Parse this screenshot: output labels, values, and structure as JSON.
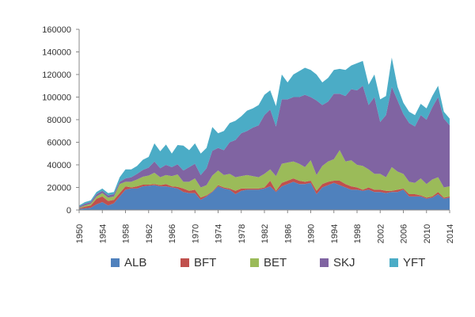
{
  "chart_data": {
    "type": "area",
    "stacked": true,
    "title": "",
    "xlabel": "",
    "ylabel": "",
    "x": [
      1950,
      1951,
      1952,
      1953,
      1954,
      1955,
      1956,
      1957,
      1958,
      1959,
      1960,
      1961,
      1962,
      1963,
      1964,
      1965,
      1966,
      1967,
      1968,
      1969,
      1970,
      1971,
      1972,
      1973,
      1974,
      1975,
      1976,
      1977,
      1978,
      1979,
      1980,
      1981,
      1982,
      1983,
      1984,
      1985,
      1986,
      1987,
      1988,
      1989,
      1990,
      1991,
      1992,
      1993,
      1994,
      1995,
      1996,
      1997,
      1998,
      1999,
      2000,
      2001,
      2002,
      2003,
      2004,
      2005,
      2006,
      2007,
      2008,
      2009,
      2010,
      2011,
      2012,
      2013,
      2014
    ],
    "x_tick_labels": [
      "1950",
      "1954",
      "1958",
      "1962",
      "1966",
      "1970",
      "1974",
      "1978",
      "1982",
      "1986",
      "1990",
      "1994",
      "1998",
      "2002",
      "2006",
      "2010",
      "2014"
    ],
    "ylim": [
      0,
      160000
    ],
    "y_ticks": [
      "0",
      "20000",
      "40000",
      "60000",
      "80000",
      "100000",
      "120000",
      "140000",
      "160000"
    ],
    "grid": false,
    "legend_position": "bottom",
    "series": [
      {
        "name": "ALB",
        "color": "#4F81BD",
        "values": [
          1000,
          1500,
          2000,
          5000,
          7000,
          4000,
          6000,
          12000,
          18000,
          19000,
          19000,
          21000,
          21500,
          22000,
          21000,
          21000,
          20000,
          19000,
          16000,
          15000,
          15000,
          9000,
          12000,
          16000,
          21000,
          19000,
          18000,
          14000,
          17000,
          18000,
          18000,
          18000,
          19000,
          21000,
          16000,
          21000,
          23000,
          25000,
          23000,
          23000,
          24000,
          14000,
          20000,
          22000,
          24000,
          22000,
          20000,
          18000,
          18000,
          17000,
          18000,
          16000,
          16000,
          15000,
          16000,
          16000,
          18000,
          12000,
          12000,
          12000,
          10000,
          11000,
          14000,
          10000,
          11000
        ]
      },
      {
        "name": "BFT",
        "color": "#C0504D",
        "values": [
          500,
          1500,
          2000,
          5000,
          5000,
          4000,
          3000,
          3000,
          3000,
          1000,
          2000,
          1500,
          1000,
          1000,
          1000,
          2000,
          1000,
          1500,
          3000,
          2000,
          3000,
          2000,
          1000,
          500,
          1000,
          1000,
          1000,
          3000,
          2000,
          1000,
          1000,
          1000,
          1000,
          5000,
          1000,
          3000,
          3000,
          3000,
          3000,
          2000,
          2000,
          3000,
          3000,
          3000,
          2000,
          4000,
          3000,
          3000,
          2000,
          1000,
          2000,
          2000,
          2000,
          2000,
          1000,
          2000,
          1000,
          2000,
          2000,
          1000,
          1000,
          1000,
          2000,
          1000,
          1000
        ]
      },
      {
        "name": "BET",
        "color": "#9BBB59",
        "values": [
          500,
          1000,
          1500,
          2000,
          3000,
          3000,
          3000,
          8000,
          4000,
          5000,
          6000,
          7000,
          8000,
          10000,
          7000,
          8000,
          9000,
          11000,
          6000,
          8000,
          10000,
          9000,
          9000,
          14000,
          13000,
          11000,
          13000,
          12000,
          11000,
          12000,
          11000,
          10000,
          12000,
          10000,
          13000,
          17000,
          16000,
          15000,
          15000,
          13000,
          18000,
          14000,
          16000,
          18000,
          19000,
          27000,
          20000,
          23000,
          20000,
          21000,
          16000,
          14000,
          14000,
          12000,
          21000,
          16000,
          13000,
          11000,
          10000,
          15000,
          12000,
          15000,
          13000,
          9000,
          9000
        ]
      },
      {
        "name": "SKJ",
        "color": "#8064A2",
        "values": [
          1000,
          1500,
          1500,
          2000,
          2000,
          2000,
          2000,
          2000,
          3000,
          4000,
          5000,
          6000,
          7000,
          10000,
          8000,
          9000,
          8000,
          9000,
          10000,
          13000,
          13000,
          11000,
          15000,
          22000,
          20000,
          22000,
          28000,
          33000,
          38000,
          39000,
          43000,
          46000,
          52000,
          53000,
          44000,
          57000,
          56000,
          57000,
          59000,
          64000,
          56000,
          66000,
          54000,
          53000,
          58000,
          50000,
          58000,
          63000,
          66000,
          71000,
          57000,
          68000,
          46000,
          55000,
          71000,
          63000,
          53000,
          52000,
          50000,
          56000,
          57000,
          64000,
          71000,
          61000,
          54000
        ]
      },
      {
        "name": "YFT",
        "color": "#4BACC6",
        "values": [
          1000,
          1500,
          1500,
          2000,
          2000,
          2000,
          2000,
          4000,
          8000,
          7000,
          7000,
          9000,
          9500,
          16000,
          15000,
          18000,
          12000,
          17000,
          22000,
          15000,
          18000,
          19000,
          18000,
          21000,
          13000,
          17000,
          17000,
          17000,
          15000,
          18000,
          17000,
          18000,
          18000,
          17000,
          18000,
          22000,
          15000,
          20000,
          23000,
          24000,
          24000,
          23000,
          20000,
          21000,
          21000,
          22000,
          23000,
          21000,
          24000,
          22000,
          18000,
          20000,
          20000,
          17000,
          26000,
          12000,
          10000,
          10000,
          10000,
          10000,
          10000,
          10000,
          10000,
          6000,
          6000
        ]
      }
    ]
  }
}
